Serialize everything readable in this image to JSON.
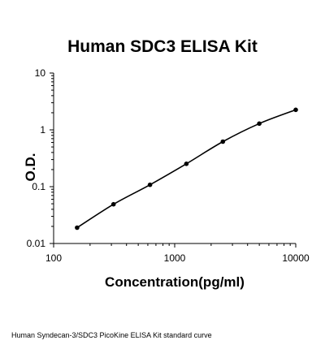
{
  "chart_data": {
    "type": "line",
    "title": "Human SDC3 ELISA Kit",
    "xlabel": "Concentration(pg/ml)",
    "ylabel": "O.D.",
    "x_scale": "log",
    "y_scale": "log",
    "xlim": [
      100,
      10000
    ],
    "ylim": [
      0.01,
      10
    ],
    "x_ticks": [
      "100",
      "1000",
      "10000"
    ],
    "y_ticks": [
      "10",
      "1",
      "0.1",
      "0.01"
    ],
    "grid": false,
    "legend": "none",
    "series": [
      {
        "x": [
          156.25,
          312.5,
          625,
          1250,
          2500,
          5000,
          10000
        ],
        "y": [
          0.019,
          0.049,
          0.108,
          0.253,
          0.62,
          1.29,
          2.25
        ]
      }
    ]
  },
  "caption": "Human Syndecan-3/SDC3 PicoKine ELISA Kit standard curve"
}
